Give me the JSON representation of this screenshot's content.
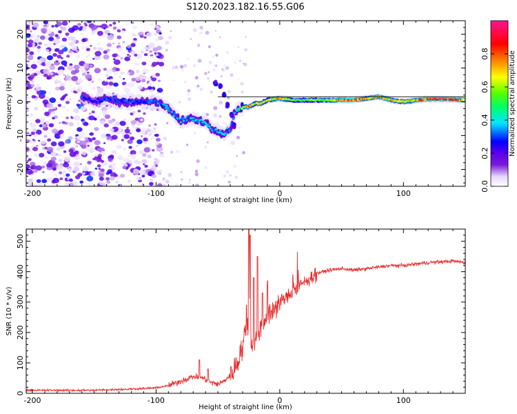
{
  "title": "S120.2023.182.16.55.G06",
  "chart_data": [
    {
      "type": "heatmap",
      "name": "spectrogram",
      "xlabel": "Height of straight line (km)",
      "ylabel": "Frequency (Hz)",
      "xlim": [
        -205,
        150
      ],
      "ylim": [
        -25,
        24
      ],
      "xticks": [
        -200,
        -100,
        0,
        100
      ],
      "yticks": [
        -20,
        -10,
        0,
        10,
        20
      ],
      "colorbar": {
        "label": "Normalized spectral amplitude",
        "range": [
          0,
          1
        ],
        "ticks": [
          0.0,
          0.2,
          0.4,
          0.6,
          0.8
        ],
        "tick_labels": [
          "0.0",
          "0.2",
          "0.4",
          "0.6",
          "0.8"
        ],
        "colors": [
          "#ffffff",
          "#e6d6fb",
          "#7a1bd9",
          "#5a00ee",
          "#0000ff",
          "#00e5ff",
          "#00ff66",
          "#55ff00",
          "#ffff00",
          "#ff8000",
          "#ff0000",
          "#ff1493"
        ]
      },
      "ridge": [
        {
          "x": -160,
          "y": 1.5,
          "a": 0.3
        },
        {
          "x": -150,
          "y": 0.0,
          "a": 0.25
        },
        {
          "x": -140,
          "y": 1.0,
          "a": 0.32
        },
        {
          "x": -130,
          "y": 0.0,
          "a": 0.3
        },
        {
          "x": -120,
          "y": 0.0,
          "a": 0.33
        },
        {
          "x": -110,
          "y": 0.0,
          "a": 0.28
        },
        {
          "x": -100,
          "y": 0.0,
          "a": 0.35
        },
        {
          "x": -90,
          "y": -2.0,
          "a": 0.35
        },
        {
          "x": -85,
          "y": -4.0,
          "a": 0.4
        },
        {
          "x": -80,
          "y": -6.0,
          "a": 0.4
        },
        {
          "x": -75,
          "y": -5.0,
          "a": 0.35
        },
        {
          "x": -70,
          "y": -5.0,
          "a": 0.4
        },
        {
          "x": -65,
          "y": -5.5,
          "a": 0.38
        },
        {
          "x": -60,
          "y": -6.0,
          "a": 0.4
        },
        {
          "x": -55,
          "y": -8.0,
          "a": 0.4
        },
        {
          "x": -50,
          "y": -8.5,
          "a": 0.4
        },
        {
          "x": -45,
          "y": -9.5,
          "a": 0.4
        },
        {
          "x": -40,
          "y": -8.0,
          "a": 0.35
        },
        {
          "x": -37,
          "y": -4.0,
          "a": 0.35
        },
        {
          "x": -34,
          "y": -2.0,
          "a": 0.4
        },
        {
          "x": -30,
          "y": -1.5,
          "a": 0.6
        },
        {
          "x": -25,
          "y": -1.5,
          "a": 0.8
        },
        {
          "x": -20,
          "y": -0.5,
          "a": 0.6
        },
        {
          "x": -15,
          "y": -0.5,
          "a": 0.7
        },
        {
          "x": -10,
          "y": 0.5,
          "a": 0.6
        },
        {
          "x": 0,
          "y": 1.0,
          "a": 0.8
        },
        {
          "x": 10,
          "y": 0.5,
          "a": 0.6
        },
        {
          "x": 20,
          "y": 0.5,
          "a": 0.55
        },
        {
          "x": 30,
          "y": 0.5,
          "a": 0.6
        },
        {
          "x": 40,
          "y": 0.5,
          "a": 0.7
        },
        {
          "x": 50,
          "y": 0.5,
          "a": 0.8
        },
        {
          "x": 60,
          "y": 0.5,
          "a": 0.9
        },
        {
          "x": 70,
          "y": 1.0,
          "a": 0.7
        },
        {
          "x": 80,
          "y": 1.5,
          "a": 0.8
        },
        {
          "x": 90,
          "y": 0.5,
          "a": 0.7
        },
        {
          "x": 100,
          "y": 0.0,
          "a": 0.7
        },
        {
          "x": 110,
          "y": 0.5,
          "a": 0.75
        },
        {
          "x": 120,
          "y": 0.8,
          "a": 0.9
        },
        {
          "x": 130,
          "y": 0.8,
          "a": 0.9
        },
        {
          "x": 140,
          "y": 0.7,
          "a": 0.85
        },
        {
          "x": 150,
          "y": 0.5,
          "a": 0.8
        }
      ],
      "spur": [
        {
          "x": -52,
          "y": 5.5
        },
        {
          "x": -48,
          "y": 4.5
        },
        {
          "x": -45,
          "y": 2.0
        },
        {
          "x": -42,
          "y": -1.0
        },
        {
          "x": -39,
          "y": -4.0
        },
        {
          "x": -37,
          "y": -7.0
        }
      ],
      "noise_region": [
        -205,
        -95
      ],
      "reference_line": {
        "y": 1.5,
        "from_x": -50,
        "to_x": 150
      }
    },
    {
      "type": "line",
      "name": "snr",
      "xlabel": "Height of straight line (km)",
      "ylabel": "SNR (10 * v/v)",
      "xlim": [
        -205,
        150
      ],
      "ylim": [
        0,
        540
      ],
      "xticks": [
        -200,
        -100,
        0,
        100
      ],
      "yticks": [
        0,
        100,
        200,
        300,
        400,
        500
      ],
      "color": "#e83030",
      "baseline": [
        {
          "x": -205,
          "y": 10
        },
        {
          "x": -150,
          "y": 10
        },
        {
          "x": -120,
          "y": 14
        },
        {
          "x": -100,
          "y": 18
        },
        {
          "x": -90,
          "y": 25
        },
        {
          "x": -80,
          "y": 40
        },
        {
          "x": -70,
          "y": 55
        },
        {
          "x": -62,
          "y": 50
        },
        {
          "x": -55,
          "y": 35
        },
        {
          "x": -50,
          "y": 30
        },
        {
          "x": -45,
          "y": 40
        },
        {
          "x": -40,
          "y": 60
        },
        {
          "x": -35,
          "y": 90
        },
        {
          "x": -30,
          "y": 150
        },
        {
          "x": -27,
          "y": 240
        },
        {
          "x": -25,
          "y": 210
        },
        {
          "x": -22,
          "y": 160
        },
        {
          "x": -19,
          "y": 180
        },
        {
          "x": -15,
          "y": 230
        },
        {
          "x": -10,
          "y": 255
        },
        {
          "x": -5,
          "y": 280
        },
        {
          "x": 0,
          "y": 300
        },
        {
          "x": 5,
          "y": 315
        },
        {
          "x": 10,
          "y": 330
        },
        {
          "x": 15,
          "y": 350
        },
        {
          "x": 20,
          "y": 365
        },
        {
          "x": 25,
          "y": 380
        },
        {
          "x": 30,
          "y": 395
        },
        {
          "x": 40,
          "y": 405
        },
        {
          "x": 50,
          "y": 410
        },
        {
          "x": 60,
          "y": 405
        },
        {
          "x": 70,
          "y": 410
        },
        {
          "x": 80,
          "y": 415
        },
        {
          "x": 90,
          "y": 420
        },
        {
          "x": 100,
          "y": 420
        },
        {
          "x": 110,
          "y": 425
        },
        {
          "x": 120,
          "y": 430
        },
        {
          "x": 130,
          "y": 432
        },
        {
          "x": 140,
          "y": 435
        },
        {
          "x": 150,
          "y": 430
        }
      ],
      "spikes": [
        {
          "x": -65,
          "y": 110
        },
        {
          "x": -58,
          "y": 80
        },
        {
          "x": -27,
          "y": 290
        },
        {
          "x": -25,
          "y": 540
        },
        {
          "x": -24,
          "y": 520
        },
        {
          "x": -21,
          "y": 380
        },
        {
          "x": -18,
          "y": 450
        },
        {
          "x": -14,
          "y": 330
        },
        {
          "x": -10,
          "y": 370
        }
      ]
    }
  ]
}
